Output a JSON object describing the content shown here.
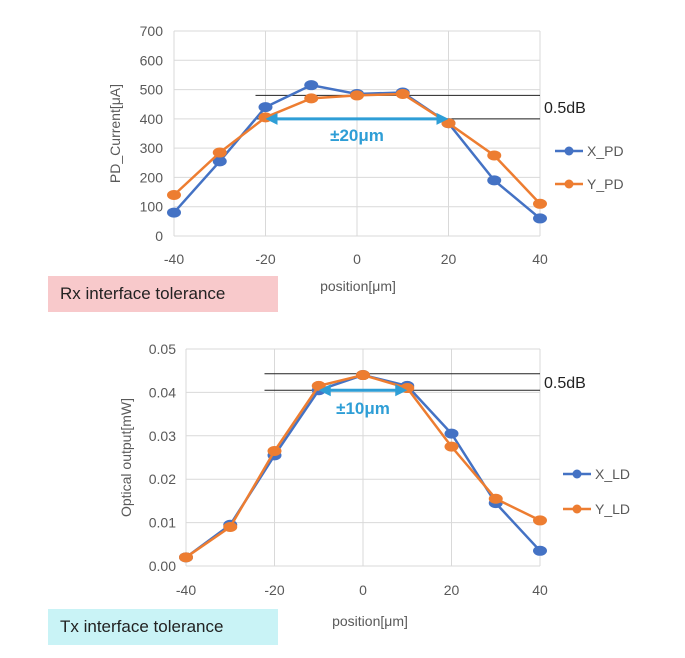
{
  "chart_data": [
    {
      "type": "line",
      "x": [
        -40,
        -30,
        -20,
        -10,
        0,
        10,
        20,
        30,
        40
      ],
      "xlim": [
        -40,
        40
      ],
      "ylim": [
        0,
        700
      ],
      "x_ticks": [
        "-40",
        "-20",
        "0",
        "20",
        "40"
      ],
      "y_ticks": [
        "0",
        "100",
        "200",
        "300",
        "400",
        "500",
        "600",
        "700"
      ],
      "xlabel": "position[μm]",
      "ylabel": "PD_Current[μA]",
      "grid": true,
      "legend_position": "right",
      "series": [
        {
          "name": "X_PD",
          "color": "#4472c4",
          "values": [
            80,
            255,
            440,
            515,
            485,
            490,
            385,
            190,
            60
          ]
        },
        {
          "name": "Y_PD",
          "color": "#ed7d31",
          "values": [
            140,
            285,
            405,
            470,
            480,
            485,
            385,
            275,
            110
          ]
        }
      ],
      "ref_lines": [
        480,
        400
      ],
      "ref_label": "0.5dB",
      "arrow_range": [
        -20,
        20
      ],
      "arrow_y": 400,
      "arrow_label": "±20μm",
      "caption": "Rx interface tolerance"
    },
    {
      "type": "line",
      "x": [
        -40,
        -30,
        -20,
        -10,
        0,
        10,
        20,
        30,
        40
      ],
      "xlim": [
        -40,
        40
      ],
      "ylim": [
        0,
        0.05
      ],
      "x_ticks": [
        "-40",
        "-20",
        "0",
        "20",
        "40"
      ],
      "y_ticks": [
        "0.00",
        "0.01",
        "0.02",
        "0.03",
        "0.04",
        "0.05"
      ],
      "xlabel": "position[μm]",
      "ylabel": "Optical output[mW]",
      "grid": true,
      "legend_position": "right",
      "series": [
        {
          "name": "X_LD",
          "color": "#4472c4",
          "values": [
            0.002,
            0.0095,
            0.0255,
            0.0405,
            0.044,
            0.0415,
            0.0305,
            0.0145,
            0.0035
          ]
        },
        {
          "name": "Y_LD",
          "color": "#ed7d31",
          "values": [
            0.002,
            0.009,
            0.0265,
            0.0415,
            0.044,
            0.041,
            0.0275,
            0.0155,
            0.0105
          ]
        }
      ],
      "ref_lines": [
        0.0443,
        0.0405
      ],
      "ref_label": "0.5dB",
      "arrow_range": [
        -10,
        10
      ],
      "arrow_y": 0.0405,
      "arrow_label": "±10μm",
      "caption": "Tx interface tolerance"
    }
  ]
}
